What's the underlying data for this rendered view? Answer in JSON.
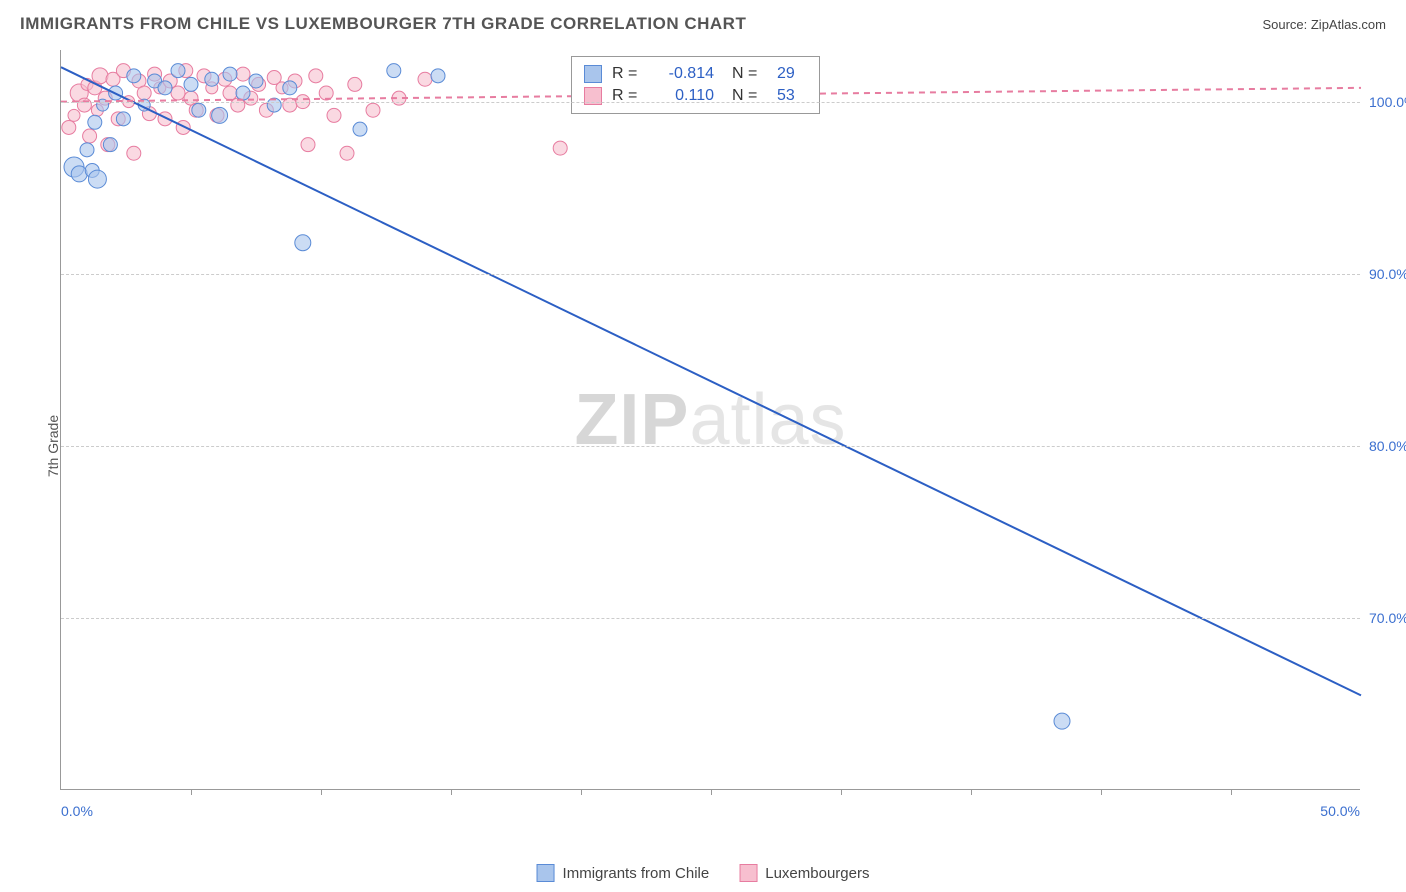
{
  "title": "IMMIGRANTS FROM CHILE VS LUXEMBOURGER 7TH GRADE CORRELATION CHART",
  "source_label": "Source: ",
  "source_name": "ZipAtlas.com",
  "watermark_a": "ZIP",
  "watermark_b": "atlas",
  "chart": {
    "type": "scatter-with-trendlines",
    "xlim": [
      0,
      50
    ],
    "ylim": [
      60,
      103
    ],
    "yticks": [
      70,
      80,
      90,
      100
    ],
    "ytick_labels": [
      "70.0%",
      "80.0%",
      "90.0%",
      "100.0%"
    ],
    "xticks": [
      0,
      5,
      10,
      15,
      20,
      25,
      30,
      35,
      40,
      45,
      50
    ],
    "x_start_label": "0.0%",
    "x_end_label": "50.0%",
    "ylabel": "7th Grade",
    "background_color": "#ffffff",
    "grid_color": "#cccccc",
    "axis_color": "#999999",
    "series": [
      {
        "name": "Immigrants from Chile",
        "fill": "#a9c5ec",
        "stroke": "#5a8bd6",
        "trend_color": "#2c5fc4",
        "trend_dash": "none",
        "R": "-0.814",
        "N": "29",
        "trend": {
          "x1": 0,
          "y1": 102.0,
          "x2": 50,
          "y2": 65.5
        },
        "points": [
          {
            "x": 0.5,
            "y": 96.2,
            "r": 10
          },
          {
            "x": 0.7,
            "y": 95.8,
            "r": 8
          },
          {
            "x": 1.0,
            "y": 97.2,
            "r": 7
          },
          {
            "x": 1.2,
            "y": 96.0,
            "r": 7
          },
          {
            "x": 1.3,
            "y": 98.8,
            "r": 7
          },
          {
            "x": 1.4,
            "y": 95.5,
            "r": 9
          },
          {
            "x": 1.6,
            "y": 99.8,
            "r": 6
          },
          {
            "x": 1.9,
            "y": 97.5,
            "r": 7
          },
          {
            "x": 2.1,
            "y": 100.5,
            "r": 7
          },
          {
            "x": 2.4,
            "y": 99.0,
            "r": 7
          },
          {
            "x": 2.8,
            "y": 101.5,
            "r": 7
          },
          {
            "x": 3.2,
            "y": 99.8,
            "r": 6
          },
          {
            "x": 3.6,
            "y": 101.2,
            "r": 7
          },
          {
            "x": 4.0,
            "y": 100.8,
            "r": 7
          },
          {
            "x": 4.5,
            "y": 101.8,
            "r": 7
          },
          {
            "x": 5.0,
            "y": 101.0,
            "r": 7
          },
          {
            "x": 5.3,
            "y": 99.5,
            "r": 7
          },
          {
            "x": 5.8,
            "y": 101.3,
            "r": 7
          },
          {
            "x": 6.1,
            "y": 99.2,
            "r": 8
          },
          {
            "x": 6.5,
            "y": 101.6,
            "r": 7
          },
          {
            "x": 7.0,
            "y": 100.5,
            "r": 7
          },
          {
            "x": 7.5,
            "y": 101.2,
            "r": 7
          },
          {
            "x": 8.2,
            "y": 99.8,
            "r": 7
          },
          {
            "x": 8.8,
            "y": 100.8,
            "r": 7
          },
          {
            "x": 9.3,
            "y": 91.8,
            "r": 8
          },
          {
            "x": 11.5,
            "y": 98.4,
            "r": 7
          },
          {
            "x": 12.8,
            "y": 101.8,
            "r": 7
          },
          {
            "x": 14.5,
            "y": 101.5,
            "r": 7
          },
          {
            "x": 38.5,
            "y": 64.0,
            "r": 8
          }
        ]
      },
      {
        "name": "Luxembourgers",
        "fill": "#f7bfcf",
        "stroke": "#e77ca0",
        "trend_color": "#e77ca0",
        "trend_dash": "6 5",
        "R": "0.110",
        "N": "53",
        "trend": {
          "x1": 0,
          "y1": 100.0,
          "x2": 50,
          "y2": 100.8
        },
        "points": [
          {
            "x": 0.3,
            "y": 98.5,
            "r": 7
          },
          {
            "x": 0.5,
            "y": 99.2,
            "r": 6
          },
          {
            "x": 0.7,
            "y": 100.5,
            "r": 9
          },
          {
            "x": 0.9,
            "y": 99.8,
            "r": 7
          },
          {
            "x": 1.0,
            "y": 101.0,
            "r": 6
          },
          {
            "x": 1.1,
            "y": 98.0,
            "r": 7
          },
          {
            "x": 1.3,
            "y": 100.8,
            "r": 7
          },
          {
            "x": 1.4,
            "y": 99.5,
            "r": 6
          },
          {
            "x": 1.5,
            "y": 101.5,
            "r": 8
          },
          {
            "x": 1.7,
            "y": 100.2,
            "r": 7
          },
          {
            "x": 1.8,
            "y": 97.5,
            "r": 7
          },
          {
            "x": 2.0,
            "y": 101.3,
            "r": 7
          },
          {
            "x": 2.2,
            "y": 99.0,
            "r": 7
          },
          {
            "x": 2.4,
            "y": 101.8,
            "r": 7
          },
          {
            "x": 2.6,
            "y": 100.0,
            "r": 6
          },
          {
            "x": 2.8,
            "y": 97.0,
            "r": 7
          },
          {
            "x": 3.0,
            "y": 101.2,
            "r": 7
          },
          {
            "x": 3.2,
            "y": 100.5,
            "r": 7
          },
          {
            "x": 3.4,
            "y": 99.3,
            "r": 7
          },
          {
            "x": 3.6,
            "y": 101.6,
            "r": 7
          },
          {
            "x": 3.8,
            "y": 100.8,
            "r": 6
          },
          {
            "x": 4.0,
            "y": 99.0,
            "r": 7
          },
          {
            "x": 4.2,
            "y": 101.2,
            "r": 7
          },
          {
            "x": 4.5,
            "y": 100.5,
            "r": 7
          },
          {
            "x": 4.7,
            "y": 98.5,
            "r": 7
          },
          {
            "x": 4.8,
            "y": 101.8,
            "r": 7
          },
          {
            "x": 5.0,
            "y": 100.2,
            "r": 7
          },
          {
            "x": 5.2,
            "y": 99.5,
            "r": 7
          },
          {
            "x": 5.5,
            "y": 101.5,
            "r": 7
          },
          {
            "x": 5.8,
            "y": 100.8,
            "r": 6
          },
          {
            "x": 6.0,
            "y": 99.2,
            "r": 7
          },
          {
            "x": 6.3,
            "y": 101.3,
            "r": 7
          },
          {
            "x": 6.5,
            "y": 100.5,
            "r": 7
          },
          {
            "x": 6.8,
            "y": 99.8,
            "r": 7
          },
          {
            "x": 7.0,
            "y": 101.6,
            "r": 7
          },
          {
            "x": 7.3,
            "y": 100.2,
            "r": 7
          },
          {
            "x": 7.6,
            "y": 101.0,
            "r": 7
          },
          {
            "x": 7.9,
            "y": 99.5,
            "r": 7
          },
          {
            "x": 8.2,
            "y": 101.4,
            "r": 7
          },
          {
            "x": 8.5,
            "y": 100.8,
            "r": 6
          },
          {
            "x": 8.8,
            "y": 99.8,
            "r": 7
          },
          {
            "x": 9.0,
            "y": 101.2,
            "r": 7
          },
          {
            "x": 9.3,
            "y": 100.0,
            "r": 7
          },
          {
            "x": 9.5,
            "y": 97.5,
            "r": 7
          },
          {
            "x": 9.8,
            "y": 101.5,
            "r": 7
          },
          {
            "x": 10.2,
            "y": 100.5,
            "r": 7
          },
          {
            "x": 10.5,
            "y": 99.2,
            "r": 7
          },
          {
            "x": 11.0,
            "y": 97.0,
            "r": 7
          },
          {
            "x": 11.3,
            "y": 101.0,
            "r": 7
          },
          {
            "x": 12.0,
            "y": 99.5,
            "r": 7
          },
          {
            "x": 13.0,
            "y": 100.2,
            "r": 7
          },
          {
            "x": 14.0,
            "y": 101.3,
            "r": 7
          },
          {
            "x": 19.2,
            "y": 97.3,
            "r": 7
          }
        ]
      }
    ]
  },
  "legend": {
    "series1_label": "Immigrants from Chile",
    "series2_label": "Luxembourgers"
  },
  "stats_labels": {
    "R": "R =",
    "N": "N ="
  }
}
